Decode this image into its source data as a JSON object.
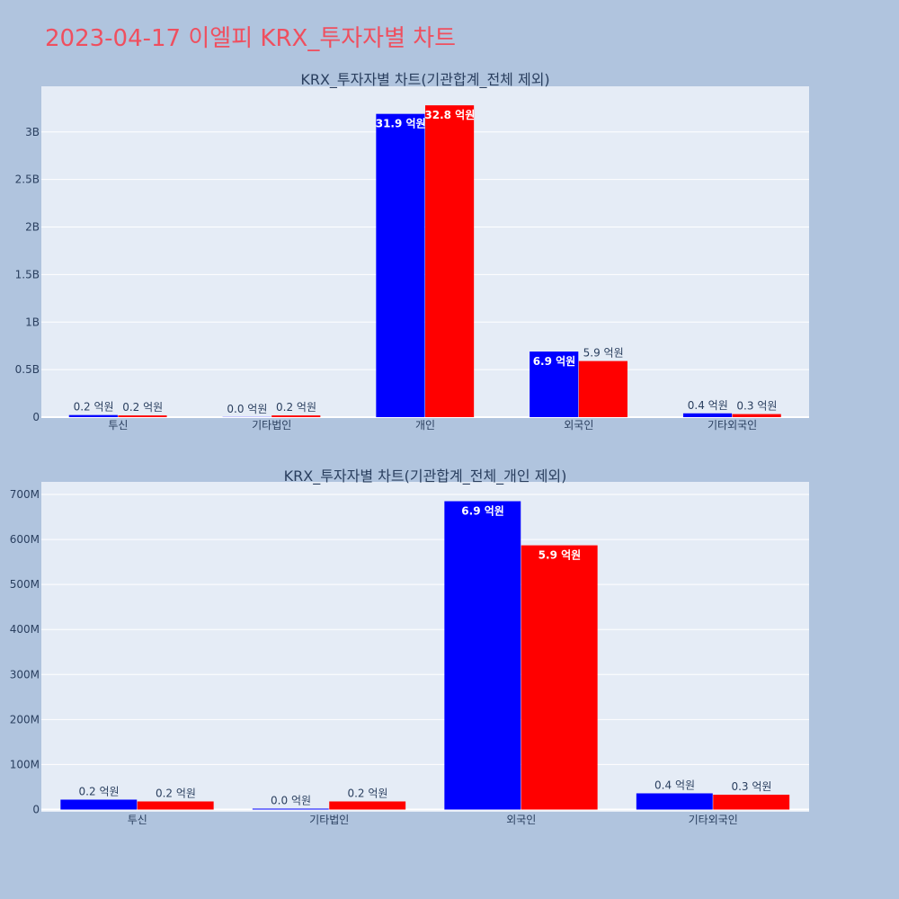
{
  "page": {
    "title": "2023-04-17 이엘피 KRX_투자자별 차트"
  },
  "colors": {
    "background": "#b0c4de",
    "plot": "#e5ecf6",
    "title": "#ef4f5f",
    "series_a": "#0000ff",
    "series_b": "#ff0000"
  },
  "chart_data": [
    {
      "type": "bar",
      "title": "KRX_투자자별 차트(기관합계_전체 제외)",
      "categories": [
        "투신",
        "기타법인",
        "개인",
        "외국인",
        "기타외국인"
      ],
      "series": [
        {
          "color": "#0000ff",
          "values": [
            22000000,
            2000000,
            3190000000,
            690000000,
            40000000
          ],
          "labels": [
            "0.2 억원",
            "0.0 억원",
            "31.9 억원",
            "6.9 억원",
            "0.4 억원"
          ]
        },
        {
          "color": "#ff0000",
          "values": [
            18000000,
            18000000,
            3280000000,
            590000000,
            32000000
          ],
          "labels": [
            "0.2 억원",
            "0.2 억원",
            "32.8 억원",
            "5.9 억원",
            "0.3 억원"
          ]
        }
      ],
      "ylim": [
        0,
        3480000000
      ],
      "yticks": [
        0,
        500000000,
        1000000000,
        1500000000,
        2000000000,
        2500000000,
        3000000000
      ],
      "ytick_labels": [
        "0",
        "0.5B",
        "1B",
        "1.5B",
        "2B",
        "2.5B",
        "3B"
      ],
      "xlabel": "",
      "ylabel": "",
      "grid": true
    },
    {
      "type": "bar",
      "title": "KRX_투자자별 차트(기관합계_전체_개인 제외)",
      "categories": [
        "투신",
        "기타법인",
        "외국인",
        "기타외국인"
      ],
      "series": [
        {
          "color": "#0000ff",
          "values": [
            22000000,
            2000000,
            685000000,
            36000000
          ],
          "labels": [
            "0.2 억원",
            "0.0 억원",
            "6.9 억원",
            "0.4 억원"
          ]
        },
        {
          "color": "#ff0000",
          "values": [
            18000000,
            18000000,
            587000000,
            33000000
          ],
          "labels": [
            "0.2 억원",
            "0.2 억원",
            "5.9 억원",
            "0.3 억원"
          ]
        }
      ],
      "ylim": [
        -5000000,
        728000000
      ],
      "yticks": [
        0,
        100000000,
        200000000,
        300000000,
        400000000,
        500000000,
        600000000,
        700000000
      ],
      "ytick_labels": [
        "0",
        "100M",
        "200M",
        "300M",
        "400M",
        "500M",
        "600M",
        "700M"
      ],
      "xlabel": "",
      "ylabel": "",
      "grid": true
    }
  ]
}
